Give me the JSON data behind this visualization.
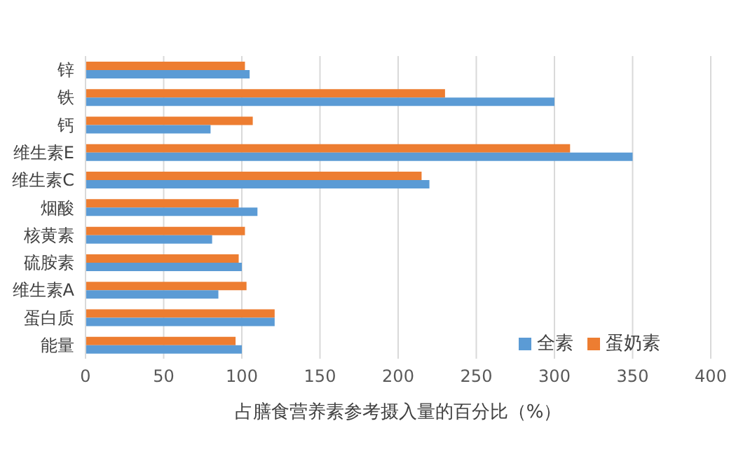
{
  "chart_data": {
    "type": "bar",
    "orientation": "horizontal",
    "xlabel": "占膳食营养素参考摄入量的百分比（%）",
    "categories": [
      "锌",
      "铁",
      "钙",
      "维生素E",
      "维生素C",
      "烟酸",
      "核黄素",
      "硫胺素",
      "维生素A",
      "蛋白质",
      "能量"
    ],
    "series": [
      {
        "name": "蛋奶素",
        "color": "#ed7d31",
        "values": [
          102,
          230,
          107,
          310,
          215,
          98,
          102,
          98,
          103,
          121,
          96
        ]
      },
      {
        "name": "全素",
        "color": "#5b9bd5",
        "values": [
          105,
          300,
          80,
          350,
          220,
          110,
          81,
          100,
          85,
          121,
          100
        ]
      }
    ],
    "xlim": [
      0,
      400
    ],
    "xticks": [
      0,
      50,
      100,
      150,
      200,
      250,
      300,
      350,
      400
    ],
    "grid": "x",
    "legend": "bottom right"
  }
}
